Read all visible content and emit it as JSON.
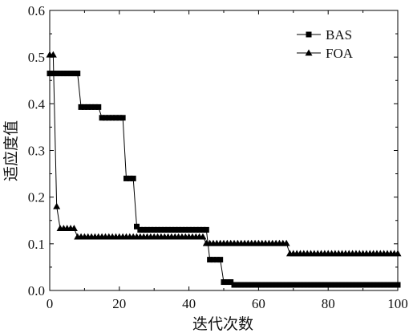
{
  "chart_data": {
    "type": "line",
    "title": "",
    "xlabel": "迭代次数",
    "ylabel": "适应度值",
    "xlim": [
      0,
      100
    ],
    "ylim": [
      0,
      0.6
    ],
    "x_ticks": [
      0,
      20,
      40,
      60,
      80,
      100
    ],
    "y_ticks": [
      0.0,
      0.1,
      0.2,
      0.3,
      0.4,
      0.5,
      0.6
    ],
    "x_tick_labels": [
      "0",
      "20",
      "40",
      "60",
      "80",
      "100"
    ],
    "y_tick_labels": [
      "0.0",
      "0.1",
      "0.2",
      "0.3",
      "0.4",
      "0.5",
      "0.6"
    ],
    "grid": false,
    "legend_position": "top-right",
    "series": [
      {
        "name": "BAS",
        "marker": "square",
        "color": "#000000",
        "x": [
          0,
          1,
          2,
          3,
          4,
          5,
          6,
          7,
          8,
          9,
          10,
          11,
          12,
          13,
          14,
          15,
          16,
          17,
          18,
          19,
          20,
          21,
          22,
          23,
          24,
          25,
          26,
          27,
          28,
          29,
          30,
          31,
          32,
          33,
          34,
          35,
          36,
          37,
          38,
          39,
          40,
          41,
          42,
          43,
          44,
          45,
          46,
          47,
          48,
          49,
          50,
          51,
          52,
          53,
          54,
          55,
          56,
          57,
          58,
          59,
          60,
          61,
          62,
          63,
          64,
          65,
          66,
          67,
          68,
          69,
          70,
          71,
          72,
          73,
          74,
          75,
          76,
          77,
          78,
          79,
          80,
          81,
          82,
          83,
          84,
          85,
          86,
          87,
          88,
          89,
          90,
          91,
          92,
          93,
          94,
          95,
          96,
          97,
          98,
          99,
          100
        ],
        "y": [
          0.465,
          0.465,
          0.465,
          0.465,
          0.465,
          0.465,
          0.465,
          0.465,
          0.465,
          0.393,
          0.393,
          0.393,
          0.393,
          0.393,
          0.393,
          0.37,
          0.37,
          0.37,
          0.37,
          0.37,
          0.37,
          0.37,
          0.24,
          0.24,
          0.24,
          0.137,
          0.13,
          0.13,
          0.13,
          0.13,
          0.13,
          0.13,
          0.13,
          0.13,
          0.13,
          0.13,
          0.13,
          0.13,
          0.13,
          0.13,
          0.13,
          0.13,
          0.13,
          0.13,
          0.13,
          0.13,
          0.066,
          0.066,
          0.066,
          0.066,
          0.018,
          0.018,
          0.018,
          0.012,
          0.012,
          0.012,
          0.012,
          0.012,
          0.012,
          0.012,
          0.012,
          0.012,
          0.012,
          0.012,
          0.012,
          0.012,
          0.012,
          0.012,
          0.012,
          0.012,
          0.012,
          0.012,
          0.012,
          0.012,
          0.012,
          0.012,
          0.012,
          0.012,
          0.012,
          0.012,
          0.012,
          0.012,
          0.012,
          0.012,
          0.012,
          0.012,
          0.012,
          0.012,
          0.012,
          0.012,
          0.012,
          0.012,
          0.012,
          0.012,
          0.012,
          0.012,
          0.012,
          0.012,
          0.012,
          0.012,
          0.012
        ]
      },
      {
        "name": "FOA",
        "marker": "triangle",
        "color": "#000000",
        "x": [
          0,
          1,
          2,
          3,
          4,
          5,
          6,
          7,
          8,
          9,
          10,
          11,
          12,
          13,
          14,
          15,
          16,
          17,
          18,
          19,
          20,
          21,
          22,
          23,
          24,
          25,
          26,
          27,
          28,
          29,
          30,
          31,
          32,
          33,
          34,
          35,
          36,
          37,
          38,
          39,
          40,
          41,
          42,
          43,
          44,
          45,
          46,
          47,
          48,
          49,
          50,
          51,
          52,
          53,
          54,
          55,
          56,
          57,
          58,
          59,
          60,
          61,
          62,
          63,
          64,
          65,
          66,
          67,
          68,
          69,
          70,
          71,
          72,
          73,
          74,
          75,
          76,
          77,
          78,
          79,
          80,
          81,
          82,
          83,
          84,
          85,
          86,
          87,
          88,
          89,
          90,
          91,
          92,
          93,
          94,
          95,
          96,
          97,
          98,
          99,
          100
        ],
        "y": [
          0.505,
          0.505,
          0.18,
          0.133,
          0.133,
          0.133,
          0.133,
          0.133,
          0.115,
          0.115,
          0.115,
          0.115,
          0.115,
          0.115,
          0.115,
          0.115,
          0.115,
          0.115,
          0.115,
          0.115,
          0.115,
          0.115,
          0.115,
          0.115,
          0.115,
          0.115,
          0.115,
          0.115,
          0.115,
          0.115,
          0.115,
          0.115,
          0.115,
          0.115,
          0.115,
          0.115,
          0.115,
          0.115,
          0.115,
          0.115,
          0.115,
          0.115,
          0.115,
          0.115,
          0.115,
          0.101,
          0.101,
          0.101,
          0.101,
          0.101,
          0.101,
          0.101,
          0.101,
          0.101,
          0.101,
          0.101,
          0.101,
          0.101,
          0.101,
          0.101,
          0.101,
          0.101,
          0.101,
          0.101,
          0.101,
          0.101,
          0.101,
          0.101,
          0.101,
          0.079,
          0.079,
          0.079,
          0.079,
          0.079,
          0.079,
          0.079,
          0.079,
          0.079,
          0.079,
          0.079,
          0.079,
          0.079,
          0.079,
          0.079,
          0.079,
          0.079,
          0.079,
          0.079,
          0.079,
          0.079,
          0.079,
          0.079,
          0.079,
          0.079,
          0.079,
          0.079,
          0.079,
          0.079,
          0.079,
          0.079,
          0.079
        ]
      }
    ]
  }
}
